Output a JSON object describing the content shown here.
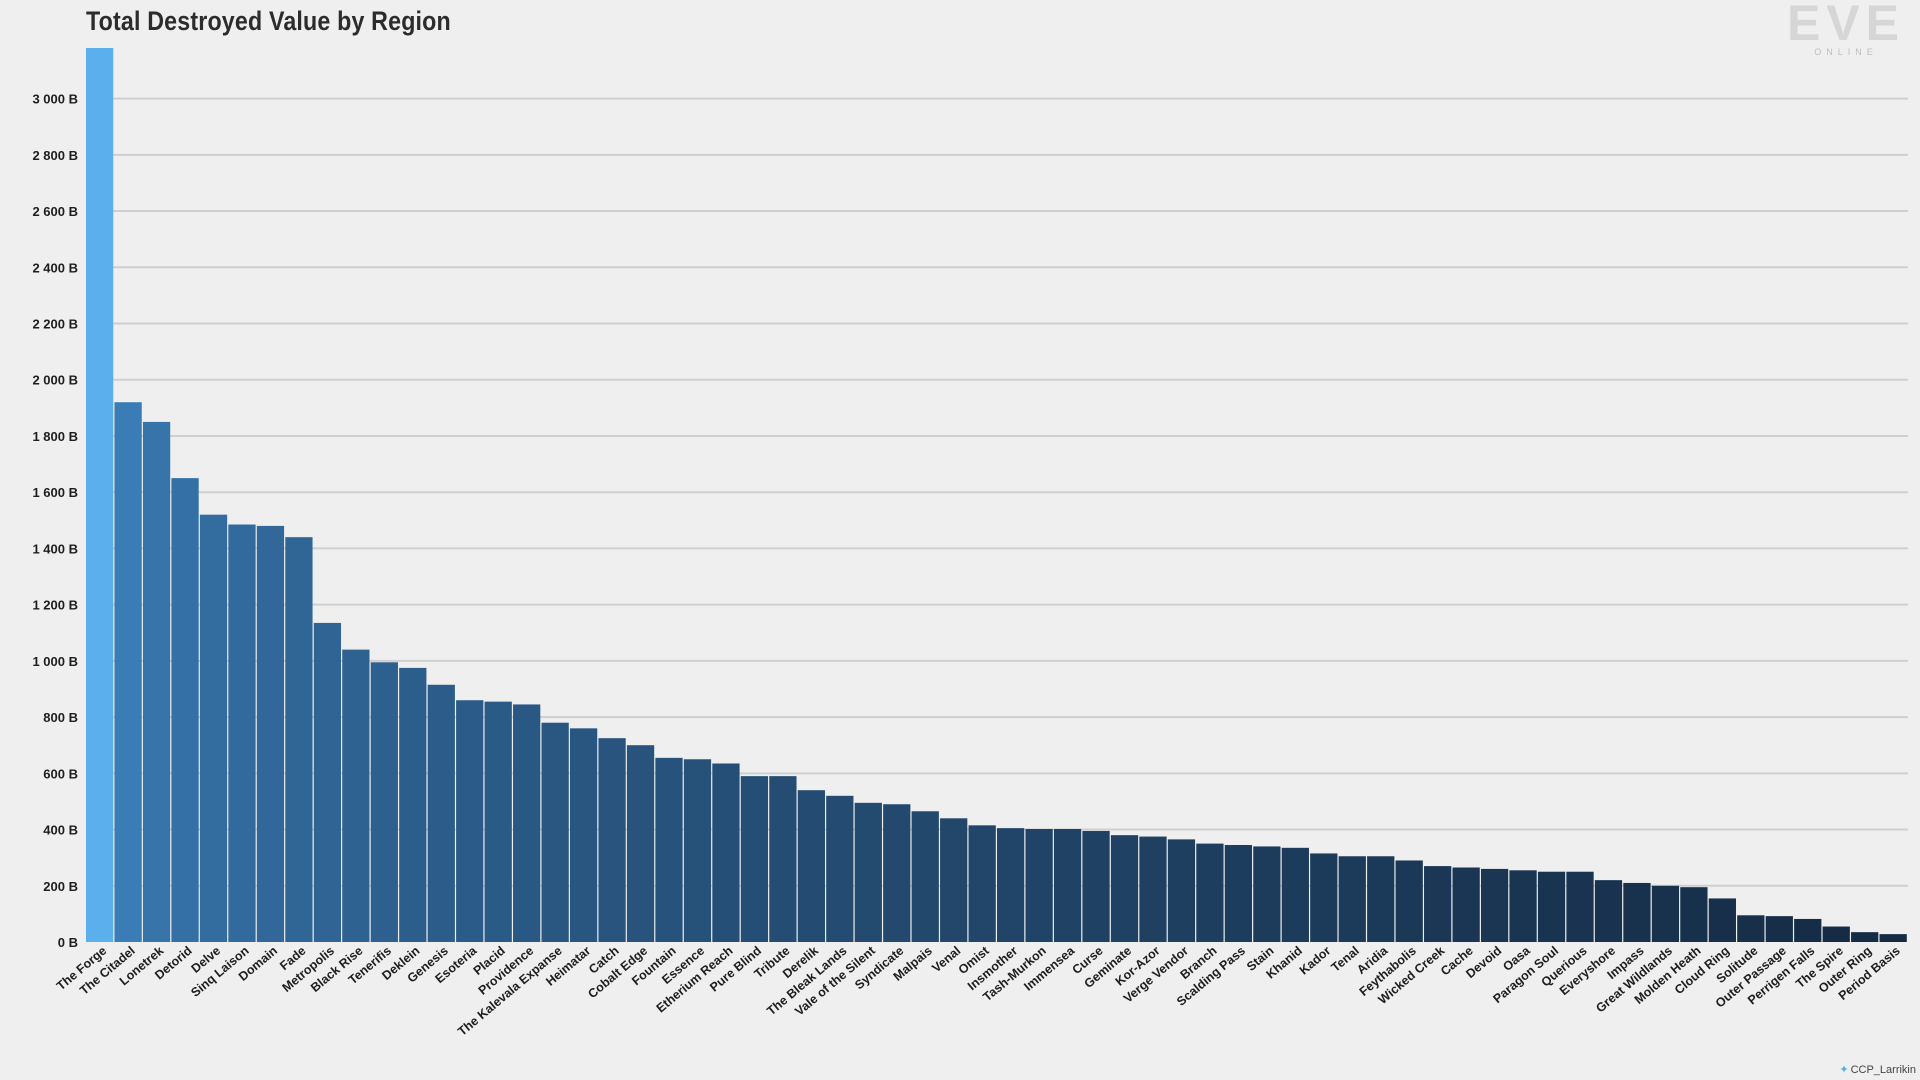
{
  "logo": {
    "text": "EVE",
    "subtext": "ONLINE"
  },
  "credit": {
    "icon": "twitter-bird-icon",
    "handle": "CCP_Larrikin"
  },
  "colors": {
    "highlight": "#5aafec",
    "dark_end": "#152b44",
    "light_start": "#3a7cb6",
    "grid": "#cfcfcf"
  },
  "chart_data": {
    "type": "bar",
    "title": "Total Destroyed Value by Region",
    "xlabel": "",
    "ylabel": "",
    "ylim": [
      0,
      3180
    ],
    "yticks": [
      0,
      200,
      400,
      600,
      800,
      1000,
      1200,
      1400,
      1600,
      1800,
      2000,
      2200,
      2400,
      2600,
      2800,
      3000
    ],
    "ytick_labels": [
      "0 B",
      "200 B",
      "400 B",
      "600 B",
      "800 B",
      "1 000 B",
      "1 200 B",
      "1 400 B",
      "1 600 B",
      "1 800 B",
      "2 000 B",
      "2 200 B",
      "2 400 B",
      "2 600 B",
      "2 800 B",
      "3 000 B"
    ],
    "grid": true,
    "categories": [
      "The Forge",
      "The Citadel",
      "Lonetrek",
      "Detorid",
      "Delve",
      "Sinq Laison",
      "Domain",
      "Fade",
      "Metropolis",
      "Black Rise",
      "Tenerifis",
      "Deklein",
      "Genesis",
      "Esoteria",
      "Placid",
      "Providence",
      "The Kalevala Expanse",
      "Heimatar",
      "Catch",
      "Cobalt Edge",
      "Fountain",
      "Essence",
      "Etherium Reach",
      "Pure Blind",
      "Tribute",
      "Derelik",
      "The Bleak Lands",
      "Vale of the Silent",
      "Syndicate",
      "Malpais",
      "Venal",
      "Omist",
      "Insmother",
      "Tash-Murkon",
      "Immensea",
      "Curse",
      "Geminate",
      "Kor-Azor",
      "Verge Vendor",
      "Branch",
      "Scalding Pass",
      "Stain",
      "Khanid",
      "Kador",
      "Tenal",
      "Aridia",
      "Feythabolis",
      "Wicked Creek",
      "Cache",
      "Devoid",
      "Oasa",
      "Paragon Soul",
      "Querious",
      "Everyshore",
      "Impass",
      "Great Wildlands",
      "Molden Heath",
      "Cloud Ring",
      "Solitude",
      "Outer Passage",
      "Perrigen Falls",
      "The Spire",
      "Outer Ring",
      "Period Basis"
    ],
    "values": [
      3180,
      1920,
      1850,
      1650,
      1520,
      1485,
      1480,
      1440,
      1135,
      1040,
      995,
      975,
      915,
      860,
      855,
      845,
      780,
      760,
      725,
      700,
      655,
      650,
      635,
      590,
      590,
      540,
      520,
      495,
      490,
      465,
      440,
      415,
      405,
      402,
      402,
      395,
      380,
      375,
      365,
      350,
      345,
      340,
      335,
      315,
      305,
      305,
      290,
      270,
      265,
      260,
      255,
      250,
      250,
      220,
      210,
      200,
      195,
      155,
      95,
      92,
      82,
      55,
      35,
      28
    ],
    "highlight_index": 0
  }
}
